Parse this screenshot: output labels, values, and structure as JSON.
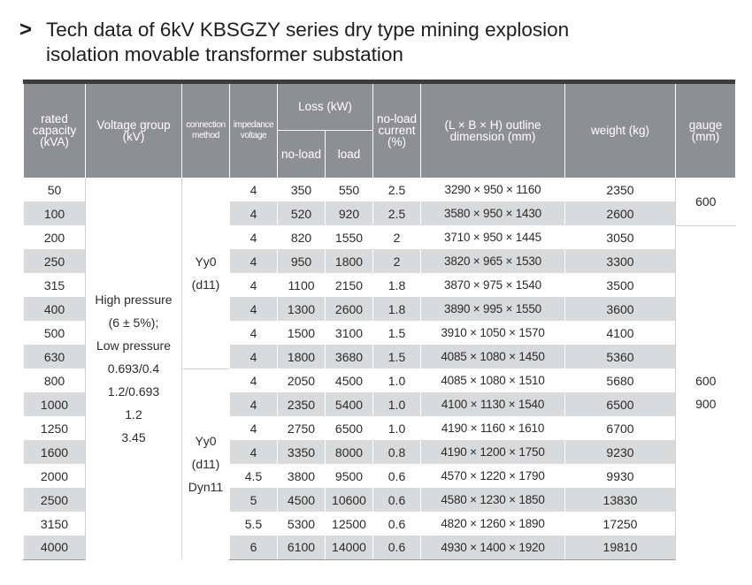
{
  "title": {
    "chevron": ">",
    "line1": "Tech data of 6kV KBSGZY series dry type mining explosion",
    "line2": "isolation movable transformer substation"
  },
  "table": {
    "headers": {
      "rated_capacity": "rated capacity (kVA)",
      "voltage_group": "Voltage group (kV)",
      "connection_method": "connection method",
      "impedance_voltage": "impedance voltage",
      "loss": "Loss (kW)",
      "no_load_loss": "no-load",
      "load_loss": "load",
      "no_load_current": "no-load current (%)",
      "outline_dimension": "(L × B × H) outline dimension (mm)",
      "weight": "weight (kg)",
      "gauge": "gauge (mm)"
    },
    "rows": [
      {
        "capacity": "50",
        "impedance": "4",
        "no_load": "350",
        "load": "550",
        "current": "2.5",
        "dimension": "3290 × 950 × 1160",
        "weight": "2350"
      },
      {
        "capacity": "100",
        "impedance": "4",
        "no_load": "520",
        "load": "920",
        "current": "2.5",
        "dimension": "3580 × 950 × 1430",
        "weight": "2600"
      },
      {
        "capacity": "200",
        "impedance": "4",
        "no_load": "820",
        "load": "1550",
        "current": "2",
        "dimension": "3710 × 950 × 1445",
        "weight": "3050"
      },
      {
        "capacity": "250",
        "impedance": "4",
        "no_load": "950",
        "load": "1800",
        "current": "2",
        "dimension": "3820 × 965 × 1530",
        "weight": "3300"
      },
      {
        "capacity": "315",
        "impedance": "4",
        "no_load": "1100",
        "load": "2150",
        "current": "1.8",
        "dimension": "3870 × 975 × 1540",
        "weight": "3500"
      },
      {
        "capacity": "400",
        "impedance": "4",
        "no_load": "1300",
        "load": "2600",
        "current": "1.8",
        "dimension": "3890 × 995 × 1550",
        "weight": "3600"
      },
      {
        "capacity": "500",
        "impedance": "4",
        "no_load": "1500",
        "load": "3100",
        "current": "1.5",
        "dimension": "3910 × 1050 × 1570",
        "weight": "4100"
      },
      {
        "capacity": "630",
        "impedance": "4",
        "no_load": "1800",
        "load": "3680",
        "current": "1.5",
        "dimension": "4085 × 1080 × 1450",
        "weight": "5360"
      },
      {
        "capacity": "800",
        "impedance": "4",
        "no_load": "2050",
        "load": "4500",
        "current": "1.0",
        "dimension": "4085 × 1080 × 1510",
        "weight": "5680"
      },
      {
        "capacity": "1000",
        "impedance": "4",
        "no_load": "2350",
        "load": "5400",
        "current": "1.0",
        "dimension": "4100 × 1130 × 1540",
        "weight": "6500"
      },
      {
        "capacity": "1250",
        "impedance": "4",
        "no_load": "2750",
        "load": "6500",
        "current": "1.0",
        "dimension": "4190 × 1160 × 1610",
        "weight": "6700"
      },
      {
        "capacity": "1600",
        "impedance": "4",
        "no_load": "3350",
        "load": "8000",
        "current": "0.8",
        "dimension": "4190 × 1200 × 1750",
        "weight": "9230"
      },
      {
        "capacity": "2000",
        "impedance": "4.5",
        "no_load": "3800",
        "load": "9500",
        "current": "0.6",
        "dimension": "4570 × 1220 × 1790",
        "weight": "9930"
      },
      {
        "capacity": "2500",
        "impedance": "5",
        "no_load": "4500",
        "load": "10600",
        "current": "0.6",
        "dimension": "4580 × 1230 × 1850",
        "weight": "13830"
      },
      {
        "capacity": "3150",
        "impedance": "5.5",
        "no_load": "5300",
        "load": "12500",
        "current": "0.6",
        "dimension": "4820 × 1260 × 1890",
        "weight": "17250"
      },
      {
        "capacity": "4000",
        "impedance": "6",
        "no_load": "6100",
        "load": "14000",
        "current": "0.6",
        "dimension": "4930 × 1400 × 1920",
        "weight": "19810"
      }
    ],
    "voltage_group_lines": [
      "High pressure",
      "(6 ± 5%);",
      "Low pressure",
      "0.693/0.4",
      "1.2/0.693",
      "1.2",
      "3.45"
    ],
    "connection_group_1": [
      "Yy0",
      "(d11)"
    ],
    "connection_group_2": [
      "Yy0",
      "(d11)",
      "Dyn11"
    ],
    "gauge_group_1": [
      "600"
    ],
    "gauge_group_2": [
      "600",
      "900"
    ]
  }
}
